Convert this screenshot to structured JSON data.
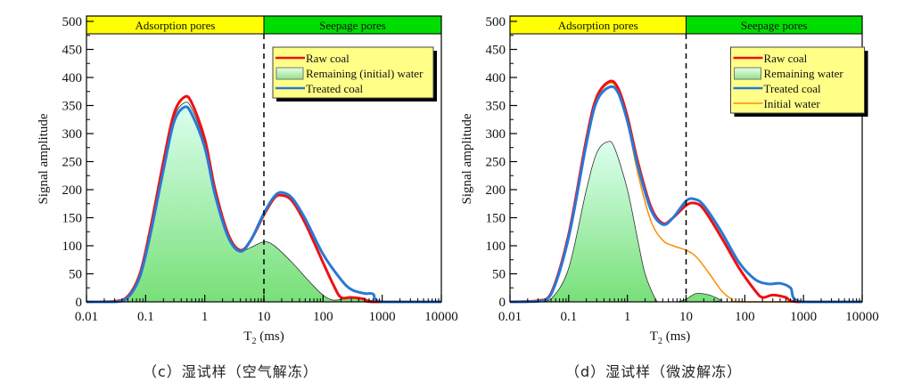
{
  "colors": {
    "raw": "#ee1111",
    "treated": "#2a78d6",
    "initial": "#ff8c00",
    "fill_top": "#dcfff0",
    "fill_bottom": "#78e078",
    "band_adsorption": "#ffff00",
    "band_seepage": "#00dd00",
    "legend_bg": "#ffff88"
  },
  "chart_data": [
    {
      "type": "line",
      "caption": "（c）湿试样（空气解冻）",
      "xlabel": "T2 (ms)",
      "ylabel": "Signal amplitude",
      "xscale": "log",
      "xlim": [
        0.01,
        10000
      ],
      "ylim": [
        0,
        500
      ],
      "xticks": [
        "0.01",
        "0.1",
        "1",
        "10",
        "100",
        "1000",
        "10000"
      ],
      "yticks": [
        "0",
        "50",
        "100",
        "150",
        "200",
        "250",
        "300",
        "350",
        "400",
        "450",
        "500"
      ],
      "divider_x": 10,
      "bands": [
        {
          "label": "Adsorption pores",
          "from": 0.01,
          "to": 10
        },
        {
          "label": "Seepage pores",
          "from": 10,
          "to": 10000
        }
      ],
      "legend": [
        "Raw coal",
        "Remaining (initial) water",
        "Treated coal"
      ],
      "series": [
        {
          "name": "Remaining (initial) water",
          "style": "fill",
          "points": [
            [
              0.01,
              0
            ],
            [
              0.03,
              0
            ],
            [
              0.05,
              9
            ],
            [
              0.08,
              48
            ],
            [
              0.12,
              125
            ],
            [
              0.2,
              242
            ],
            [
              0.3,
              328
            ],
            [
              0.45,
              355
            ],
            [
              0.6,
              345
            ],
            [
              1,
              283
            ],
            [
              1.5,
              195
            ],
            [
              2.5,
              118
            ],
            [
              4,
              92
            ],
            [
              6,
              97
            ],
            [
              10,
              107
            ],
            [
              15,
              100
            ],
            [
              30,
              70
            ],
            [
              60,
              35
            ],
            [
              100,
              12
            ],
            [
              150,
              3
            ],
            [
              250,
              6
            ],
            [
              400,
              6
            ],
            [
              700,
              2
            ],
            [
              1000,
              0
            ],
            [
              10000,
              0
            ]
          ]
        },
        {
          "name": "Raw coal",
          "style": "raw",
          "points": [
            [
              0.01,
              0
            ],
            [
              0.03,
              1
            ],
            [
              0.05,
              10
            ],
            [
              0.08,
              50
            ],
            [
              0.12,
              130
            ],
            [
              0.2,
              250
            ],
            [
              0.3,
              335
            ],
            [
              0.45,
              365
            ],
            [
              0.6,
              355
            ],
            [
              1,
              290
            ],
            [
              1.5,
              200
            ],
            [
              2.5,
              120
            ],
            [
              4,
              92
            ],
            [
              6,
              110
            ],
            [
              10,
              155
            ],
            [
              15,
              185
            ],
            [
              20,
              190
            ],
            [
              30,
              180
            ],
            [
              50,
              140
            ],
            [
              100,
              70
            ],
            [
              150,
              30
            ],
            [
              200,
              8
            ],
            [
              300,
              8
            ],
            [
              500,
              5
            ],
            [
              700,
              0
            ],
            [
              10000,
              0
            ]
          ]
        },
        {
          "name": "Treated coal",
          "style": "treated",
          "points": [
            [
              0.01,
              0
            ],
            [
              0.03,
              0
            ],
            [
              0.05,
              8
            ],
            [
              0.08,
              45
            ],
            [
              0.12,
              120
            ],
            [
              0.2,
              235
            ],
            [
              0.3,
              320
            ],
            [
              0.45,
              347
            ],
            [
              0.6,
              335
            ],
            [
              1,
              275
            ],
            [
              1.5,
              190
            ],
            [
              2.5,
              115
            ],
            [
              4,
              90
            ],
            [
              6,
              110
            ],
            [
              10,
              158
            ],
            [
              15,
              188
            ],
            [
              20,
              195
            ],
            [
              30,
              185
            ],
            [
              50,
              148
            ],
            [
              100,
              85
            ],
            [
              200,
              40
            ],
            [
              300,
              22
            ],
            [
              500,
              15
            ],
            [
              700,
              14
            ],
            [
              1000,
              0
            ],
            [
              10000,
              0
            ]
          ]
        }
      ]
    },
    {
      "type": "line",
      "caption": "（d）湿试样（微波解冻）",
      "xlabel": "T2 (ms)",
      "ylabel": "Signal amplitude",
      "xscale": "log",
      "xlim": [
        0.01,
        10000
      ],
      "ylim": [
        0,
        500
      ],
      "xticks": [
        "0.01",
        "0.1",
        "1",
        "10",
        "100",
        "1000",
        "10000"
      ],
      "yticks": [
        "0",
        "50",
        "100",
        "150",
        "200",
        "250",
        "300",
        "350",
        "400",
        "450",
        "500"
      ],
      "divider_x": 10,
      "bands": [
        {
          "label": "Adsorption pores",
          "from": 0.01,
          "to": 10
        },
        {
          "label": "Seepage pores",
          "from": 10,
          "to": 10000
        }
      ],
      "legend": [
        "Raw coal",
        "Remaining water",
        "Treated coal",
        "Initial water"
      ],
      "series": [
        {
          "name": "Remaining water",
          "style": "fill",
          "points": [
            [
              0.01,
              0
            ],
            [
              0.03,
              0
            ],
            [
              0.05,
              5
            ],
            [
              0.1,
              60
            ],
            [
              0.2,
              200
            ],
            [
              0.3,
              265
            ],
            [
              0.45,
              285
            ],
            [
              0.6,
              275
            ],
            [
              1,
              200
            ],
            [
              1.5,
              110
            ],
            [
              2,
              50
            ],
            [
              3,
              5
            ],
            [
              3.5,
              0
            ],
            [
              7,
              0
            ],
            [
              10,
              5
            ],
            [
              15,
              15
            ],
            [
              25,
              12
            ],
            [
              40,
              3
            ],
            [
              50,
              0
            ],
            [
              10000,
              0
            ]
          ]
        },
        {
          "name": "Initial water",
          "style": "initial",
          "points": [
            [
              0.01,
              0
            ],
            [
              0.03,
              2
            ],
            [
              0.05,
              15
            ],
            [
              0.1,
              120
            ],
            [
              0.2,
              288
            ],
            [
              0.3,
              362
            ],
            [
              0.5,
              390
            ],
            [
              0.7,
              375
            ],
            [
              1,
              320
            ],
            [
              1.5,
              230
            ],
            [
              2.5,
              145
            ],
            [
              4,
              110
            ],
            [
              6,
              100
            ],
            [
              10,
              92
            ],
            [
              15,
              80
            ],
            [
              25,
              50
            ],
            [
              40,
              20
            ],
            [
              60,
              5
            ],
            [
              100,
              0
            ],
            [
              10000,
              0
            ]
          ]
        },
        {
          "name": "Raw coal",
          "style": "raw",
          "points": [
            [
              0.01,
              0
            ],
            [
              0.03,
              2
            ],
            [
              0.05,
              15
            ],
            [
              0.1,
              120
            ],
            [
              0.2,
              290
            ],
            [
              0.3,
              365
            ],
            [
              0.5,
              393
            ],
            [
              0.7,
              380
            ],
            [
              1,
              330
            ],
            [
              1.5,
              250
            ],
            [
              2.5,
              170
            ],
            [
              4,
              140
            ],
            [
              6,
              150
            ],
            [
              10,
              172
            ],
            [
              14,
              176
            ],
            [
              20,
              165
            ],
            [
              40,
              115
            ],
            [
              80,
              60
            ],
            [
              150,
              20
            ],
            [
              200,
              8
            ],
            [
              300,
              12
            ],
            [
              500,
              8
            ],
            [
              800,
              0
            ],
            [
              10000,
              0
            ]
          ]
        },
        {
          "name": "Treated coal",
          "style": "treated",
          "points": [
            [
              0.01,
              0
            ],
            [
              0.03,
              1
            ],
            [
              0.05,
              13
            ],
            [
              0.1,
              115
            ],
            [
              0.2,
              282
            ],
            [
              0.3,
              357
            ],
            [
              0.5,
              383
            ],
            [
              0.7,
              372
            ],
            [
              1,
              322
            ],
            [
              1.5,
              243
            ],
            [
              2.5,
              165
            ],
            [
              4,
              138
            ],
            [
              6,
              150
            ],
            [
              10,
              180
            ],
            [
              14,
              183
            ],
            [
              20,
              172
            ],
            [
              40,
              125
            ],
            [
              80,
              70
            ],
            [
              150,
              40
            ],
            [
              250,
              32
            ],
            [
              400,
              33
            ],
            [
              600,
              25
            ],
            [
              900,
              0
            ],
            [
              10000,
              0
            ]
          ]
        }
      ]
    }
  ]
}
